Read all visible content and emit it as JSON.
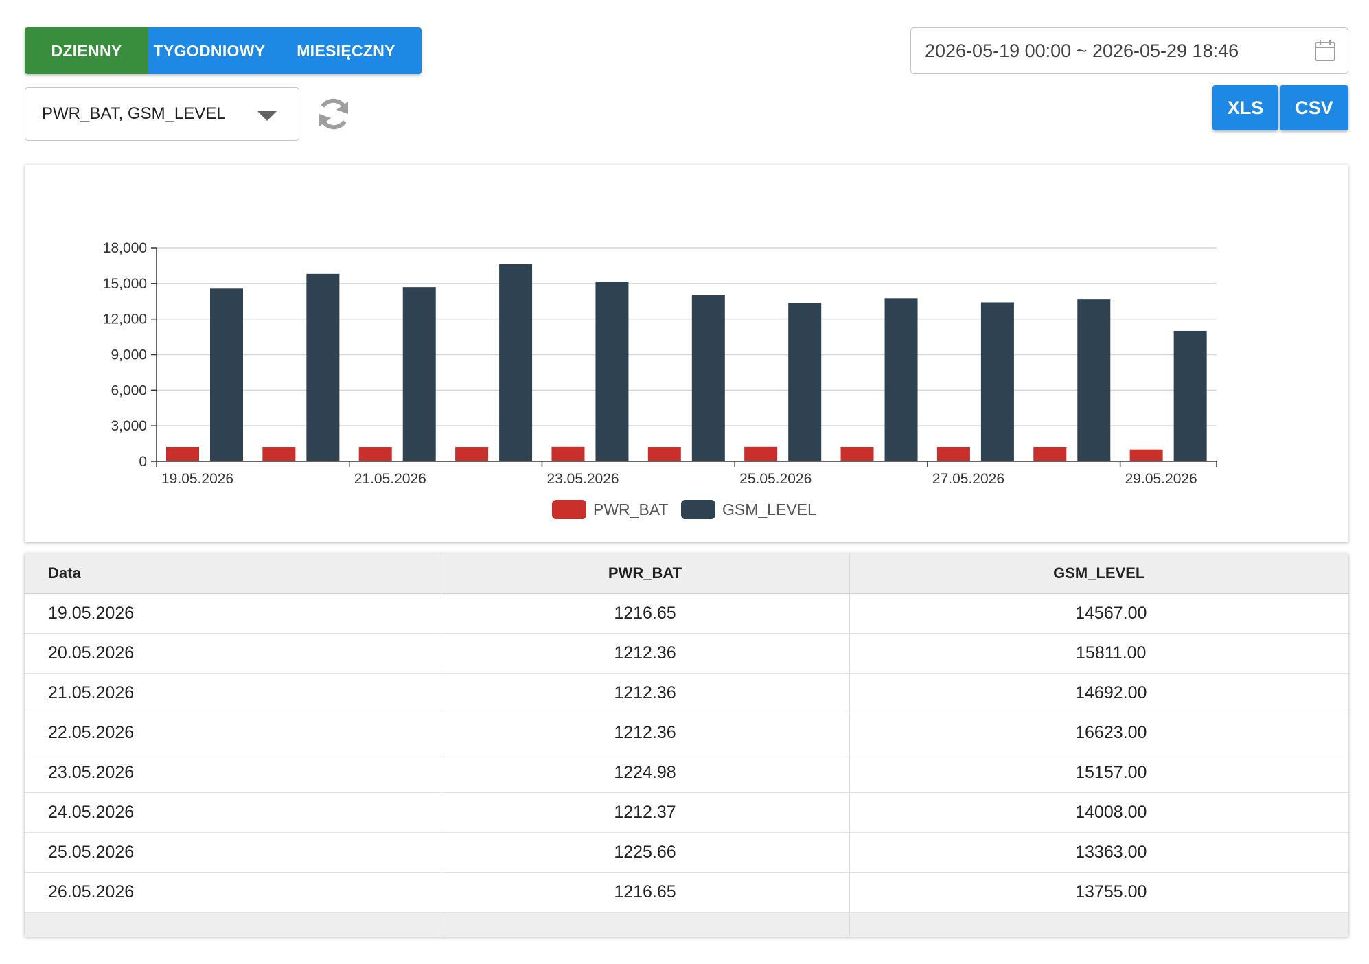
{
  "period": {
    "daily": "DZIENNY",
    "weekly": "TYGODNIOWY",
    "monthly": "MIESIĘCZNY",
    "active": "daily"
  },
  "series_select": {
    "value": "PWR_BAT, GSM_LEVEL"
  },
  "date_range": {
    "value": "2026-05-19 00:00 ~ 2026-05-29 18:46"
  },
  "export": {
    "xls": "XLS",
    "csv": "CSV"
  },
  "icons": {
    "refresh": "refresh-icon",
    "calendar": "calendar-icon",
    "dropdown": "chevron-down-icon"
  },
  "colors": {
    "active_toggle": "#388e3c",
    "primary": "#1e88e5",
    "pwr_bat": "#c9302c",
    "gsm_level": "#2e4252"
  },
  "chart_data": {
    "type": "bar",
    "categories": [
      "19.05.2026",
      "20.05.2026",
      "21.05.2026",
      "22.05.2026",
      "23.05.2026",
      "24.05.2026",
      "25.05.2026",
      "26.05.2026",
      "27.05.2026",
      "28.05.2026",
      "29.05.2026"
    ],
    "x_tick_labels": [
      "19.05.2026",
      "21.05.2026",
      "23.05.2026",
      "25.05.2026",
      "27.05.2026",
      "29.05.2026"
    ],
    "series": [
      {
        "name": "PWR_BAT",
        "color": "#c9302c",
        "values": [
          1216.65,
          1212.36,
          1212.36,
          1212.36,
          1224.98,
          1212.37,
          1225.66,
          1216.65,
          1216,
          1216,
          1000
        ]
      },
      {
        "name": "GSM_LEVEL",
        "color": "#2e4252",
        "values": [
          14567,
          15811,
          14692,
          16623,
          15157,
          14008,
          13363,
          13755,
          13400,
          13650,
          11000
        ]
      }
    ],
    "y_ticks": [
      "0",
      "3,000",
      "6,000",
      "9,000",
      "12,000",
      "15,000",
      "18,000"
    ],
    "ylim": [
      0,
      18000
    ],
    "grid": true,
    "legend": "bottom-center"
  },
  "table": {
    "headers": [
      "Data",
      "PWR_BAT",
      "GSM_LEVEL"
    ],
    "rows": [
      [
        "19.05.2026",
        "1216.65",
        "14567.00"
      ],
      [
        "20.05.2026",
        "1212.36",
        "15811.00"
      ],
      [
        "21.05.2026",
        "1212.36",
        "14692.00"
      ],
      [
        "22.05.2026",
        "1212.36",
        "16623.00"
      ],
      [
        "23.05.2026",
        "1224.98",
        "15157.00"
      ],
      [
        "24.05.2026",
        "1212.37",
        "14008.00"
      ],
      [
        "25.05.2026",
        "1225.66",
        "13363.00"
      ],
      [
        "26.05.2026",
        "1216.65",
        "13755.00"
      ]
    ]
  }
}
